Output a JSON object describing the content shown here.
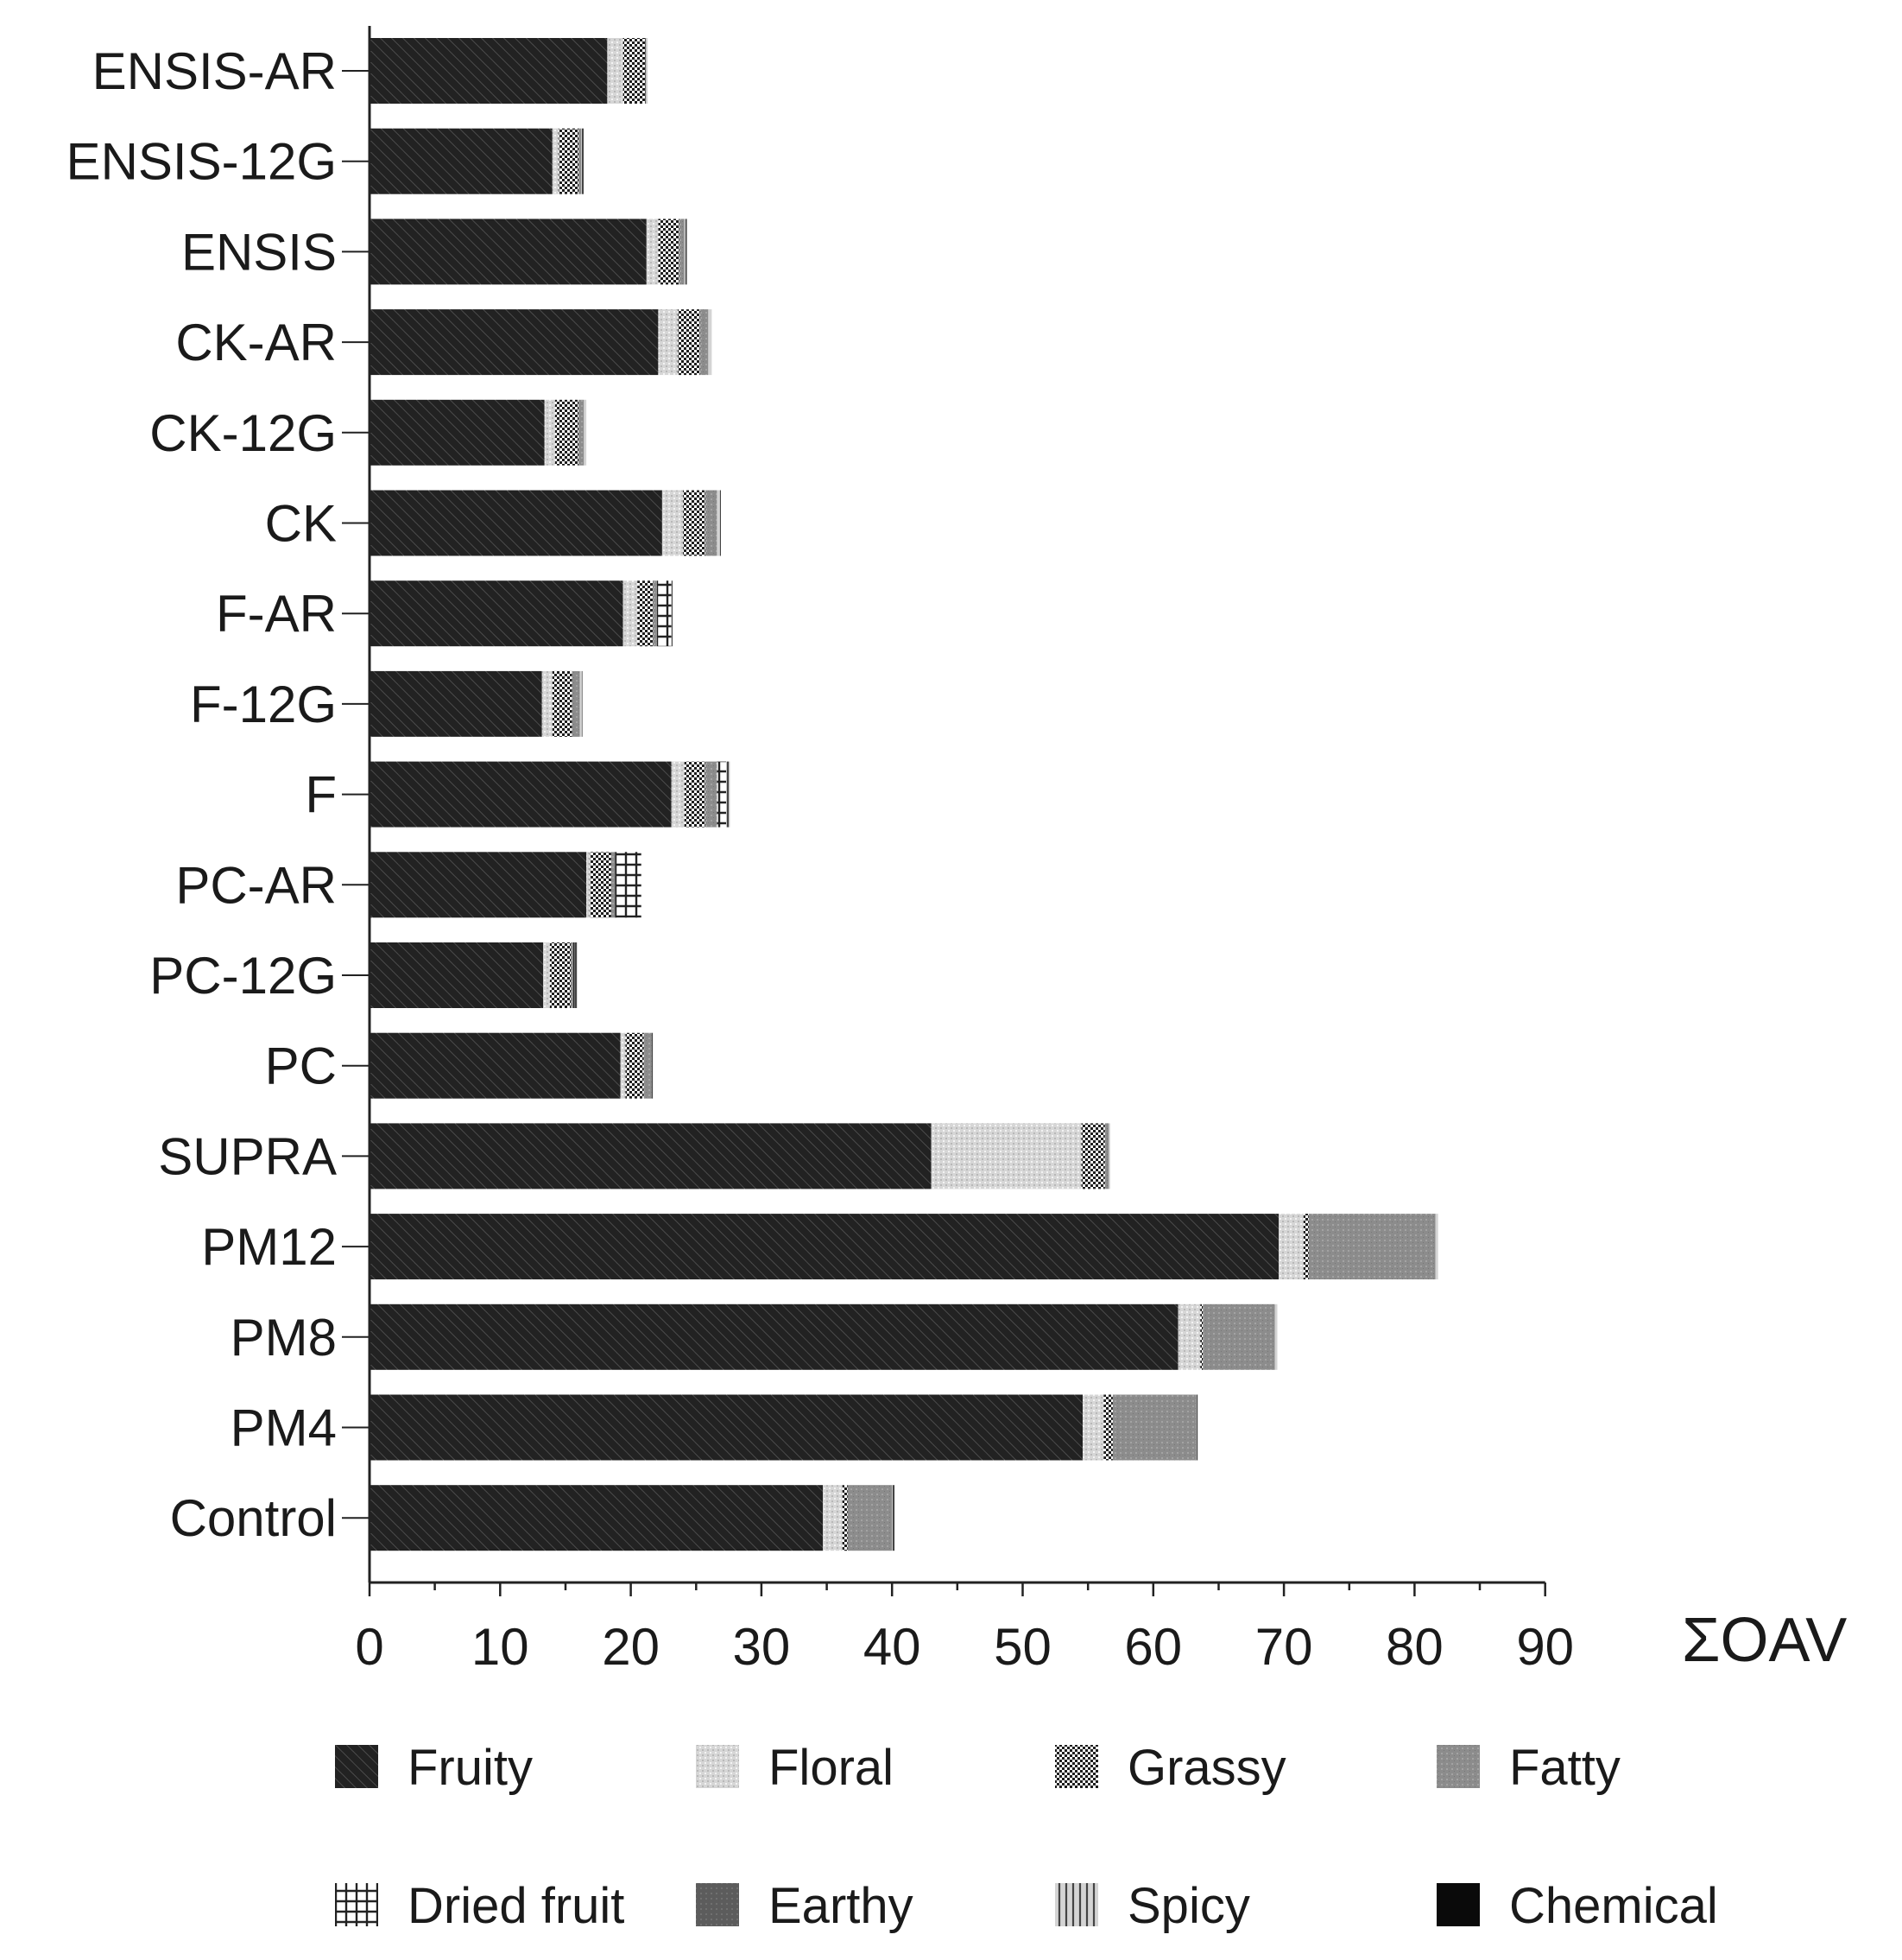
{
  "chart_data": {
    "type": "bar",
    "orientation": "horizontal",
    "stacked": true,
    "title": "",
    "xlabel": "ΣOAV",
    "ylabel": "",
    "xlim": [
      0,
      90
    ],
    "xticks": [
      0,
      10,
      20,
      30,
      40,
      50,
      60,
      70,
      80,
      90
    ],
    "grid": false,
    "legend_position": "bottom",
    "categories": [
      "ENSIS-AR",
      "ENSIS-12G",
      "ENSIS",
      "CK-AR",
      "CK-12G",
      "CK",
      "F-AR",
      "F-12G",
      "F",
      "PC-AR",
      "PC-12G",
      "PC",
      "SUPRA",
      "PM12",
      "PM8",
      "PM4",
      "Control"
    ],
    "series": [
      {
        "name": "Fruity",
        "pattern": "diagonal-hatch",
        "values": [
          18.2,
          14.0,
          21.2,
          22.1,
          13.4,
          22.4,
          19.4,
          13.2,
          23.1,
          16.6,
          13.3,
          19.2,
          43.0,
          69.6,
          61.9,
          54.6,
          34.7
        ]
      },
      {
        "name": "Floral",
        "pattern": "light-stipple",
        "values": [
          1.2,
          0.5,
          0.9,
          1.5,
          0.8,
          1.6,
          1.1,
          0.8,
          1.0,
          0.3,
          0.5,
          0.4,
          11.5,
          1.9,
          1.7,
          1.6,
          1.5
        ]
      },
      {
        "name": "Grassy",
        "pattern": "checker",
        "values": [
          1.7,
          1.5,
          1.6,
          1.7,
          1.8,
          1.7,
          1.2,
          1.5,
          1.6,
          1.6,
          1.6,
          1.4,
          1.8,
          0.4,
          0.2,
          0.7,
          0.4
        ]
      },
      {
        "name": "Fatty",
        "pattern": "gray",
        "values": [
          0,
          0.2,
          0.4,
          0.6,
          0.4,
          0.9,
          0.3,
          0.6,
          0.9,
          0.3,
          0.2,
          0.6,
          0.3,
          9.7,
          5.5,
          6.4,
          3.4
        ]
      },
      {
        "name": "Dried fruit",
        "pattern": "grid",
        "values": [
          0,
          0,
          0,
          0,
          0,
          0,
          1.1,
          0,
          0.7,
          2.0,
          0.1,
          0,
          0,
          0,
          0,
          0,
          0
        ]
      },
      {
        "name": "Earthy",
        "pattern": "dark-gray",
        "values": [
          0,
          0,
          0,
          0,
          0,
          0,
          0,
          0,
          0,
          0,
          0,
          0,
          0,
          0,
          0,
          0,
          0
        ]
      },
      {
        "name": "Spicy",
        "pattern": "vertical-lines",
        "values": [
          0.2,
          0.2,
          0.2,
          0.3,
          0.2,
          0.3,
          0.1,
          0.2,
          0.3,
          0,
          0.2,
          0.1,
          0.1,
          0.2,
          0.2,
          0.1,
          0.2
        ]
      },
      {
        "name": "Chemical",
        "pattern": "black",
        "values": [
          0,
          0,
          0,
          0,
          0,
          0,
          0,
          0,
          0,
          0,
          0,
          0,
          0,
          0,
          0,
          0,
          0
        ]
      }
    ]
  }
}
